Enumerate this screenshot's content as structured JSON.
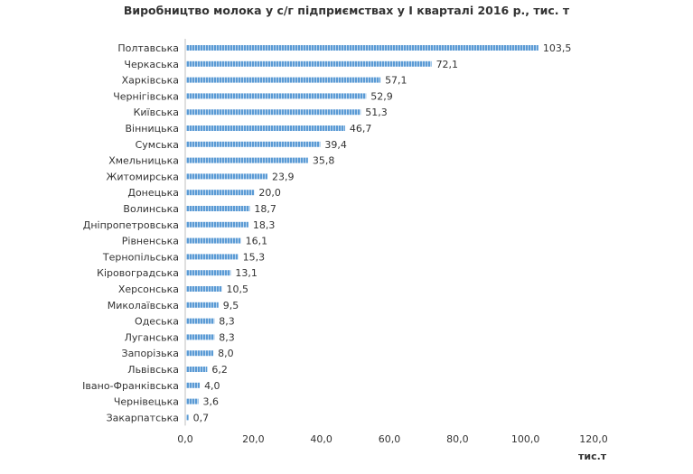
{
  "chart_data": {
    "type": "bar",
    "orientation": "horizontal",
    "title": "Виробництво молока у с/г підприємствах у І кварталі 2016 р., тис. т",
    "xlabel": "тис.т",
    "ylabel": "",
    "xlim": [
      0,
      120
    ],
    "xticks": [
      "0,0",
      "20,0",
      "40,0",
      "60,0",
      "80,0",
      "100,0",
      "120,0"
    ],
    "grid": false,
    "bar_color": "#5b9bd5",
    "categories": [
      "Полтавська",
      "Черкаська",
      "Харківська",
      "Чернігівська",
      "Київська",
      "Вінницька",
      "Сумська",
      "Хмельницька",
      "Житомирська",
      "Донецька",
      "Волинська",
      "Дніпропетровська",
      "Рівненська",
      "Тернопільська",
      "Кіровоградська",
      "Херсонська",
      "Миколаївська",
      "Одеська",
      "Луганська",
      "Запорізька",
      "Львівська",
      "Івано-Франківська",
      "Чернівецька",
      "Закарпатська"
    ],
    "values": [
      103.5,
      72.1,
      57.1,
      52.9,
      51.3,
      46.7,
      39.4,
      35.8,
      23.9,
      20.0,
      18.7,
      18.3,
      16.1,
      15.3,
      13.1,
      10.5,
      9.5,
      8.3,
      8.3,
      8.0,
      6.2,
      4.0,
      3.6,
      0.7
    ],
    "value_labels": [
      "103,5",
      "72,1",
      "57,1",
      "52,9",
      "51,3",
      "46,7",
      "39,4",
      "35,8",
      "23,9",
      "20,0",
      "18,7",
      "18,3",
      "16,1",
      "15,3",
      "13,1",
      "10,5",
      "9,5",
      "8,3",
      "8,3",
      "8,0",
      "6,2",
      "4,0",
      "3,6",
      "0,7"
    ]
  }
}
